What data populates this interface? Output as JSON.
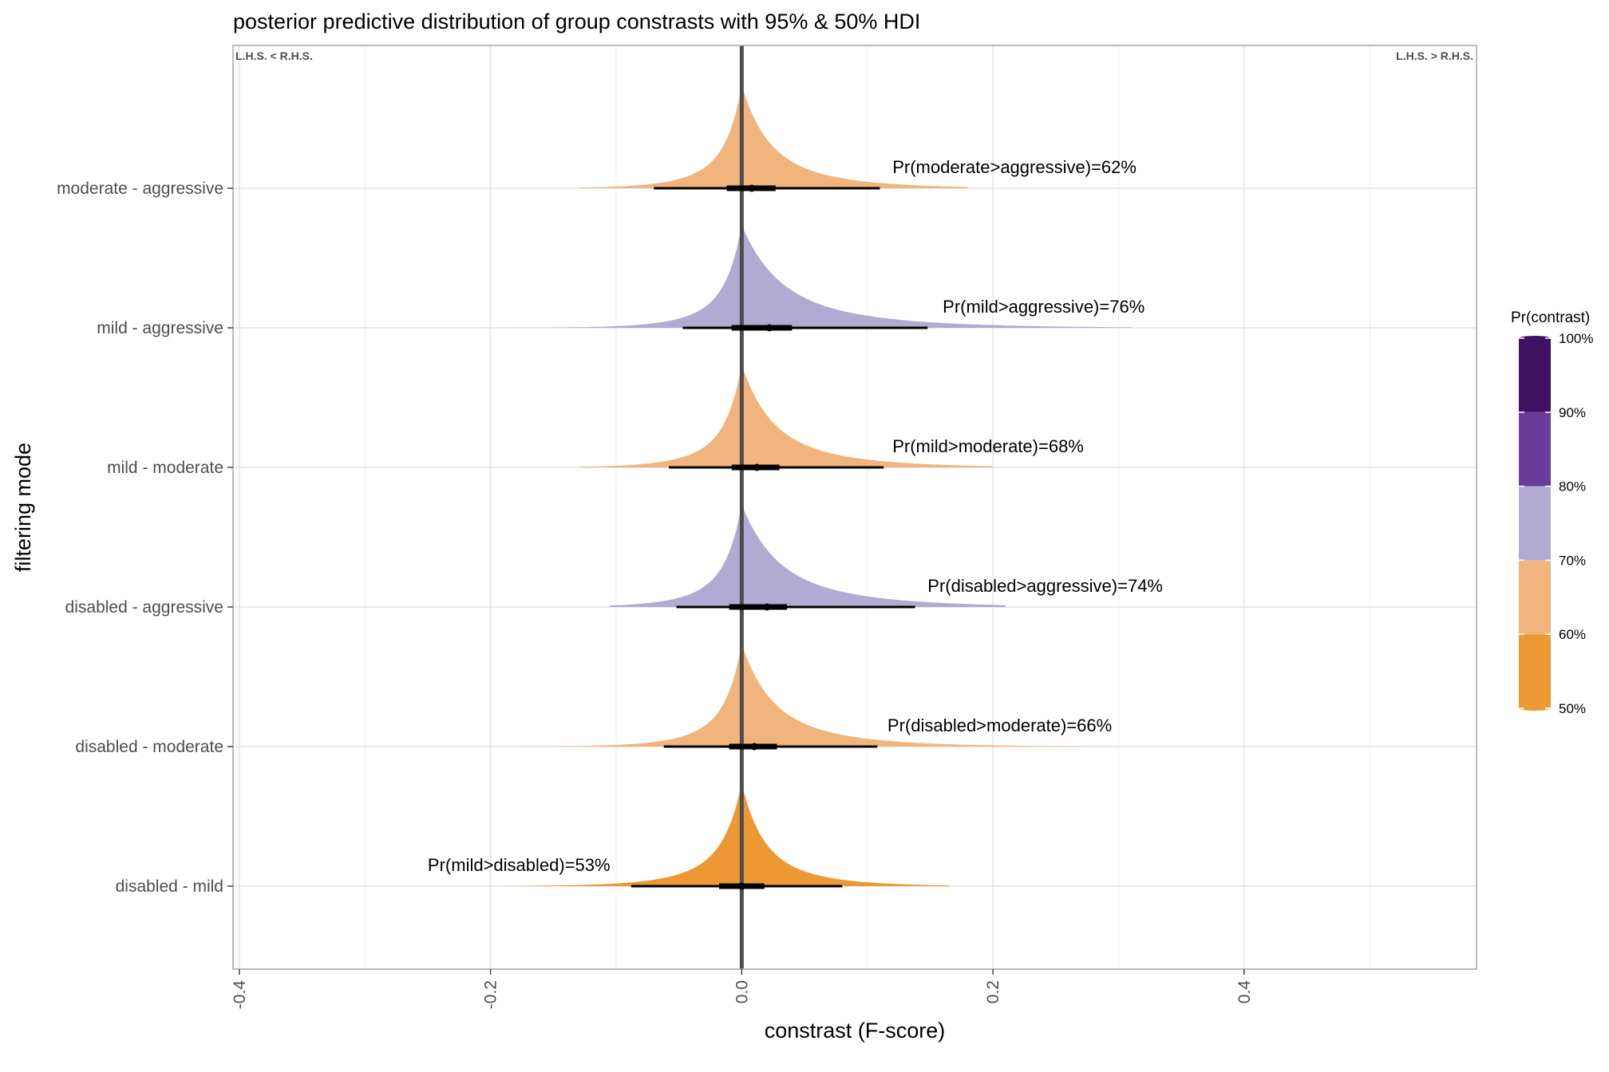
{
  "chart_data": {
    "type": "area",
    "title": "posterior predictive distribution of group constrasts with 95% & 50% HDI",
    "xlabel": "constrast (F-score)",
    "ylabel": "filtering mode",
    "xlim": [
      -0.405,
      0.585
    ],
    "x_ticks": [
      -0.4,
      -0.2,
      0.0,
      0.2,
      0.4
    ],
    "x_tick_labels": [
      "-0.4",
      "-0.2",
      "0.0",
      "0.2",
      "0.4"
    ],
    "x_minor_ticks": [
      -0.3,
      -0.1,
      0.1,
      0.3,
      0.5
    ],
    "grid": true,
    "reference_line_x": 0,
    "corner_left": "L.H.S. < R.H.S.",
    "corner_right": "L.H.S. > R.H.S.",
    "categories": [
      "moderate - aggressive",
      "mild - aggressive",
      "mild - moderate",
      "disabled - aggressive",
      "disabled - moderate",
      "disabled - mild"
    ],
    "series": [
      {
        "label": "moderate - aggressive",
        "prob": 0.62,
        "annotation": "Pr(moderate>aggressive)=62%",
        "color": "#F1B47C",
        "mode": 0.0,
        "range": [
          -0.13,
          0.18
        ],
        "left_scale": 0.03,
        "right_scale": 0.05,
        "heights": [
          1.0,
          0.35
        ],
        "hdi95": [
          -0.07,
          0.11
        ],
        "hdi50": [
          -0.012,
          0.027
        ],
        "median": 0.008
      },
      {
        "label": "mild - aggressive",
        "prob": 0.76,
        "annotation": "Pr(mild>aggressive)=76%",
        "color": "#B1AAD2",
        "mode": 0.0,
        "range": [
          -0.21,
          0.31
        ],
        "left_scale": 0.03,
        "right_scale": 0.07,
        "heights": [
          1.0,
          0.35
        ],
        "hdi95": [
          -0.047,
          0.148
        ],
        "hdi50": [
          -0.008,
          0.04
        ],
        "median": 0.022
      },
      {
        "label": "mild - moderate",
        "prob": 0.68,
        "annotation": "Pr(mild>moderate)=68%",
        "color": "#F1B47C",
        "mode": 0.0,
        "range": [
          -0.13,
          0.2
        ],
        "left_scale": 0.03,
        "right_scale": 0.055,
        "heights": [
          1.0,
          0.35
        ],
        "hdi95": [
          -0.058,
          0.113
        ],
        "hdi50": [
          -0.008,
          0.03
        ],
        "median": 0.012
      },
      {
        "label": "disabled - aggressive",
        "prob": 0.74,
        "annotation": "Pr(disabled>aggressive)=74%",
        "color": "#B1AAD2",
        "mode": 0.0,
        "range": [
          -0.105,
          0.21
        ],
        "left_scale": 0.03,
        "right_scale": 0.065,
        "heights": [
          1.0,
          0.35
        ],
        "hdi95": [
          -0.052,
          0.138
        ],
        "hdi50": [
          -0.01,
          0.036
        ],
        "median": 0.02
      },
      {
        "label": "disabled - moderate",
        "prob": 0.66,
        "annotation": "Pr(disabled>moderate)=66%",
        "color": "#F1B47C",
        "mode": 0.0,
        "range": [
          -0.28,
          0.3
        ],
        "left_scale": 0.03,
        "right_scale": 0.055,
        "heights": [
          1.0,
          0.35
        ],
        "hdi95": [
          -0.062,
          0.108
        ],
        "hdi50": [
          -0.01,
          0.028
        ],
        "median": 0.01
      },
      {
        "label": "disabled - mild",
        "prob": 0.53,
        "annotation": "Pr(mild>disabled)=53%",
        "color": "#EC9935",
        "mode": 0.0,
        "range": [
          -0.19,
          0.165
        ],
        "left_scale": 0.035,
        "right_scale": 0.04,
        "heights": [
          1.0,
          0.35
        ],
        "hdi95": [
          -0.088,
          0.08
        ],
        "hdi50": [
          -0.018,
          0.018
        ],
        "median": 0.0
      }
    ],
    "legend": {
      "title": "Pr(contrast)",
      "position": "right",
      "labels": [
        "100%",
        "90%",
        "80%",
        "70%",
        "60%",
        "50%"
      ],
      "bands": [
        {
          "from": 0.9,
          "to": 1.0,
          "color": "#3F1163"
        },
        {
          "from": 0.8,
          "to": 0.9,
          "color": "#6A3D9A"
        },
        {
          "from": 0.7,
          "to": 0.8,
          "color": "#B1AAD2"
        },
        {
          "from": 0.6,
          "to": 0.7,
          "color": "#F1B47C"
        },
        {
          "from": 0.5,
          "to": 0.6,
          "color": "#EC9935"
        }
      ]
    }
  }
}
